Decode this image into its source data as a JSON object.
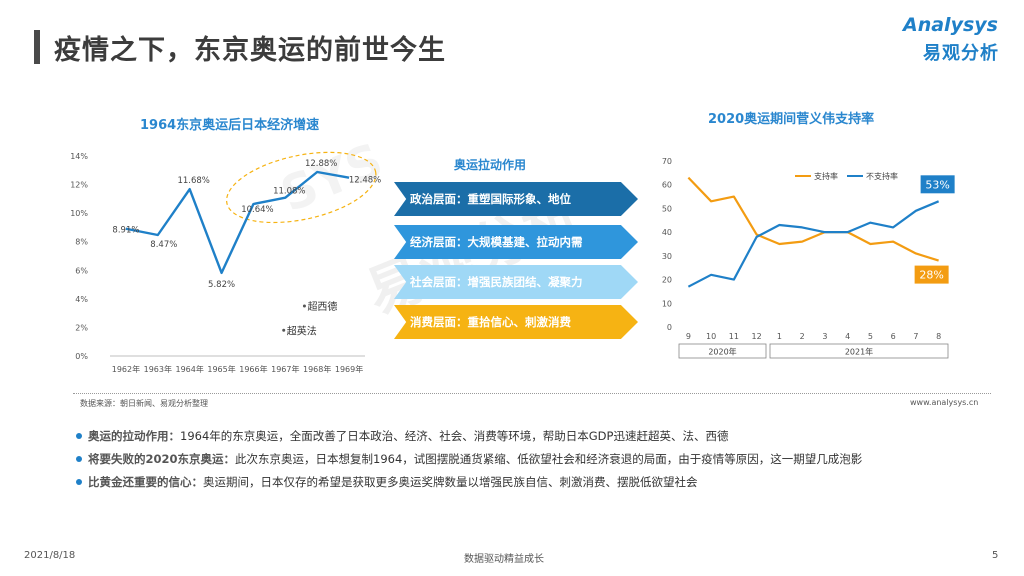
{
  "header": {
    "title": "疫情之下，东京奥运的前世今生",
    "logo_en": "Analysys",
    "logo_cn": "易观分析"
  },
  "watermark": {
    "text_en": "SYS",
    "text_cn": "易观分析"
  },
  "colors": {
    "blue": "#1f80c8",
    "orange": "#f39c12",
    "dark_blue": "#1b6ea8",
    "mid_blue": "#2f96dc",
    "light_blue": "#9fd8f6",
    "gold": "#f6b313"
  },
  "chart_data": [
    {
      "type": "line",
      "title": "1964东京奥运后日本经济增速",
      "categories": [
        "1962年",
        "1963年",
        "1964年",
        "1965年",
        "1966年",
        "1967年",
        "1968年",
        "1969年"
      ],
      "values": [
        8.91,
        8.47,
        11.68,
        5.82,
        10.64,
        11.08,
        12.88,
        12.48
      ],
      "data_labels": [
        "8.91%",
        "8.47%",
        "11.68%",
        "5.82%",
        "10.64%",
        "11.08%",
        "12.88%",
        "12.48%"
      ],
      "ylim": [
        0,
        14
      ],
      "yticks": [
        "0%",
        "2%",
        "4%",
        "6%",
        "8%",
        "10%",
        "12%",
        "14%"
      ],
      "annotations": [
        {
          "text": "超西德",
          "x_index": 5.6,
          "y": 3.5
        },
        {
          "text": "超英法",
          "x_index": 4.95,
          "y": 1.8
        }
      ],
      "grid": false
    },
    {
      "type": "line",
      "title": "2020奥运期间菅义伟支持率",
      "x": [
        "9",
        "10",
        "11",
        "12",
        "1",
        "2",
        "3",
        "4",
        "5",
        "6",
        "7",
        "8"
      ],
      "year_groups": [
        {
          "label": "2020年",
          "span": 4
        },
        {
          "label": "2021年",
          "span": 8
        }
      ],
      "series": [
        {
          "name": "支持率",
          "color": "#f39c12",
          "values": [
            63,
            53,
            55,
            39,
            35,
            36,
            40,
            40,
            35,
            36,
            31,
            28
          ]
        },
        {
          "name": "不支持率",
          "color": "#1f80c8",
          "values": [
            17,
            22,
            20,
            38,
            43,
            42,
            40,
            40,
            44,
            42,
            49,
            53
          ]
        }
      ],
      "end_labels": {
        "support": "28%",
        "oppose": "53%"
      },
      "ylim": [
        0,
        70
      ],
      "yticks": [
        "0",
        "10",
        "20",
        "30",
        "40",
        "50",
        "60",
        "70"
      ],
      "legend": "top",
      "grid": false
    }
  ],
  "impact": {
    "title": "奥运拉动作用",
    "items": [
      "政治层面：重塑国际形象、地位",
      "经济层面：大规模基建、拉动内需",
      "社会层面：增强民族团结、凝聚力",
      "消费层面：重拾信心、刺激消费"
    ]
  },
  "source": "数据来源：朝日新闻、易观分析整理",
  "website": "www.analysys.cn",
  "bullets": [
    {
      "title": "奥运的拉动作用：",
      "text": "1964年的东京奥运，全面改善了日本政治、经济、社会、消费等环境，帮助日本GDP迅速赶超英、法、西德"
    },
    {
      "title": "将要失败的2020东京奥运：",
      "text": "此次东京奥运，日本想复制1964，试图摆脱通货紧缩、低欲望社会和经济衰退的局面，由于疫情等原因，这一期望几成泡影"
    },
    {
      "title": "比黄金还重要的信心：",
      "text": "奥运期间，日本仅存的希望是获取更多奥运奖牌数量以增强民族自信、刺激消费、摆脱低欲望社会"
    }
  ],
  "footer": {
    "date": "2021/8/18",
    "center": "数据驱动精益成长",
    "page": "5"
  }
}
